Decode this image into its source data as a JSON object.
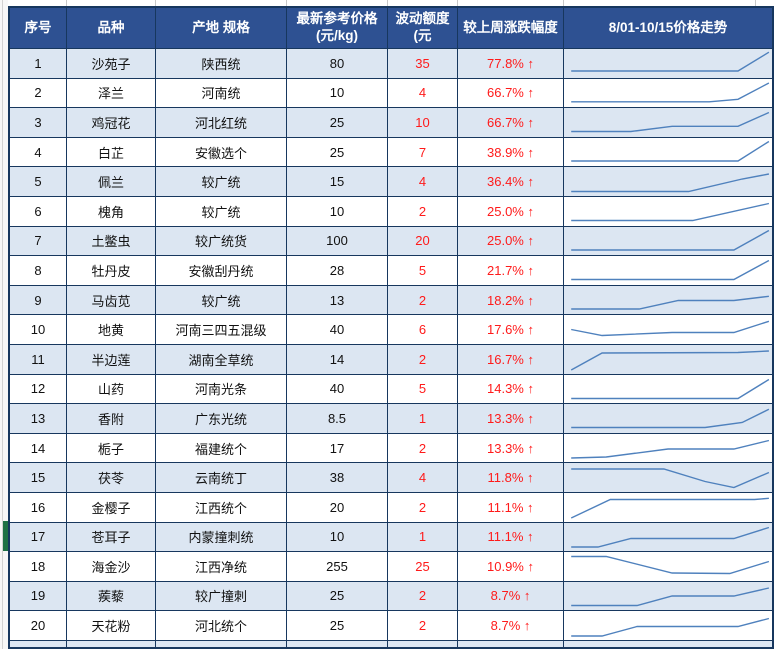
{
  "colors": {
    "header_bg": "#2e5192",
    "header_text": "#ffffff",
    "stripe_bg": "#dce6f2",
    "grid_border": "#17375e",
    "alert_red": "#ff1a1a",
    "sparkline": "#4f81bd",
    "selection_green": "#1e7145"
  },
  "table": {
    "columns": [
      {
        "title": "序号"
      },
      {
        "title": "品种"
      },
      {
        "title": "产地 规格"
      },
      {
        "title": "最新参考价格",
        "sub": "(元/kg)"
      },
      {
        "title": "波动额度",
        "sub": "(元"
      },
      {
        "title": "较上周涨跌幅度"
      },
      {
        "title": "8/01-10/15价格走势"
      }
    ],
    "rows": [
      {
        "no": "1",
        "variety": "沙苑子",
        "spec": "陕西统",
        "price": "80",
        "wave": "35",
        "change": "77.8%",
        "dir": "↑",
        "spark": [
          [
            0.03,
            0.18
          ],
          [
            0.84,
            0.18
          ],
          [
            0.99,
            0.93
          ]
        ]
      },
      {
        "no": "2",
        "variety": "泽兰",
        "spec": "河南统",
        "price": "10",
        "wave": "4",
        "change": "66.7%",
        "dir": "↑",
        "spark": [
          [
            0.03,
            0.15
          ],
          [
            0.7,
            0.15
          ],
          [
            0.84,
            0.25
          ],
          [
            0.99,
            0.9
          ]
        ]
      },
      {
        "no": "3",
        "variety": "鸡冠花",
        "spec": "河北红统",
        "price": "25",
        "wave": "10",
        "change": "66.7%",
        "dir": "↑",
        "spark": [
          [
            0.03,
            0.12
          ],
          [
            0.32,
            0.12
          ],
          [
            0.52,
            0.33
          ],
          [
            0.84,
            0.33
          ],
          [
            0.99,
            0.88
          ]
        ]
      },
      {
        "no": "4",
        "variety": "白芷",
        "spec": "安徽选个",
        "price": "25",
        "wave": "7",
        "change": "38.9%",
        "dir": "↑",
        "spark": [
          [
            0.03,
            0.14
          ],
          [
            0.84,
            0.14
          ],
          [
            0.99,
            0.92
          ]
        ]
      },
      {
        "no": "5",
        "variety": "佩兰",
        "spec": "较广统",
        "price": "15",
        "wave": "4",
        "change": "36.4%",
        "dir": "↑",
        "spark": [
          [
            0.03,
            0.12
          ],
          [
            0.6,
            0.12
          ],
          [
            0.86,
            0.62
          ],
          [
            0.99,
            0.82
          ]
        ]
      },
      {
        "no": "6",
        "variety": "槐角",
        "spec": "较广统",
        "price": "10",
        "wave": "2",
        "change": "25.0%",
        "dir": "↑",
        "spark": [
          [
            0.03,
            0.12
          ],
          [
            0.62,
            0.12
          ],
          [
            0.99,
            0.8
          ]
        ]
      },
      {
        "no": "7",
        "variety": "土鳖虫",
        "spec": "较广统货",
        "price": "100",
        "wave": "20",
        "change": "25.0%",
        "dir": "↑",
        "spark": [
          [
            0.03,
            0.14
          ],
          [
            0.82,
            0.14
          ],
          [
            0.99,
            0.92
          ]
        ]
      },
      {
        "no": "8",
        "variety": "牡丹皮",
        "spec": "安徽刮丹统",
        "price": "28",
        "wave": "5",
        "change": "21.7%",
        "dir": "↑",
        "spark": [
          [
            0.03,
            0.12
          ],
          [
            0.82,
            0.12
          ],
          [
            0.99,
            0.88
          ]
        ]
      },
      {
        "no": "9",
        "variety": "马齿苋",
        "spec": "较广统",
        "price": "13",
        "wave": "2",
        "change": "18.2%",
        "dir": "↑",
        "spark": [
          [
            0.03,
            0.14
          ],
          [
            0.36,
            0.14
          ],
          [
            0.55,
            0.48
          ],
          [
            0.82,
            0.48
          ],
          [
            0.99,
            0.65
          ]
        ]
      },
      {
        "no": "10",
        "variety": "地黄",
        "spec": "河南三四五混级",
        "price": "40",
        "wave": "6",
        "change": "17.6%",
        "dir": "↑",
        "spark": [
          [
            0.03,
            0.52
          ],
          [
            0.18,
            0.28
          ],
          [
            0.52,
            0.4
          ],
          [
            0.82,
            0.4
          ],
          [
            0.99,
            0.85
          ]
        ]
      },
      {
        "no": "11",
        "variety": "半边莲",
        "spec": "湖南全草统",
        "price": "14",
        "wave": "2",
        "change": "16.7%",
        "dir": "↑",
        "spark": [
          [
            0.03,
            0.06
          ],
          [
            0.18,
            0.74
          ],
          [
            0.84,
            0.76
          ],
          [
            0.99,
            0.82
          ]
        ]
      },
      {
        "no": "12",
        "variety": "山药",
        "spec": "河南光条",
        "price": "40",
        "wave": "5",
        "change": "14.3%",
        "dir": "↑",
        "spark": [
          [
            0.03,
            0.12
          ],
          [
            0.84,
            0.12
          ],
          [
            0.99,
            0.88
          ]
        ]
      },
      {
        "no": "13",
        "variety": "香附",
        "spec": "广东光统",
        "price": "8.5",
        "wave": "1",
        "change": "13.3%",
        "dir": "↑",
        "spark": [
          [
            0.03,
            0.12
          ],
          [
            0.68,
            0.12
          ],
          [
            0.86,
            0.32
          ],
          [
            0.99,
            0.85
          ]
        ]
      },
      {
        "no": "14",
        "variety": "栀子",
        "spec": "福建统个",
        "price": "17",
        "wave": "2",
        "change": "13.3%",
        "dir": "↑",
        "spark": [
          [
            0.03,
            0.1
          ],
          [
            0.2,
            0.14
          ],
          [
            0.5,
            0.46
          ],
          [
            0.82,
            0.46
          ],
          [
            0.99,
            0.8
          ]
        ]
      },
      {
        "no": "15",
        "variety": "茯苓",
        "spec": "云南统丁",
        "price": "38",
        "wave": "4",
        "change": "11.8%",
        "dir": "↑",
        "spark": [
          [
            0.03,
            0.86
          ],
          [
            0.48,
            0.86
          ],
          [
            0.68,
            0.36
          ],
          [
            0.82,
            0.12
          ],
          [
            0.99,
            0.72
          ]
        ]
      },
      {
        "no": "16",
        "variety": "金樱子",
        "spec": "江西统个",
        "price": "20",
        "wave": "2",
        "change": "11.1%",
        "dir": "↑",
        "spark": [
          [
            0.03,
            0.06
          ],
          [
            0.22,
            0.8
          ],
          [
            0.92,
            0.8
          ],
          [
            0.99,
            0.85
          ]
        ]
      },
      {
        "no": "17",
        "variety": "苍耳子",
        "spec": "内蒙撞刺统",
        "price": "10",
        "wave": "1",
        "change": "11.1%",
        "dir": "↑",
        "spark": [
          [
            0.03,
            0.1
          ],
          [
            0.16,
            0.1
          ],
          [
            0.32,
            0.44
          ],
          [
            0.82,
            0.44
          ],
          [
            0.99,
            0.88
          ]
        ]
      },
      {
        "no": "18",
        "variety": "海金沙",
        "spec": "江西净统",
        "price": "255",
        "wave": "25",
        "change": "10.9%",
        "dir": "↑",
        "spark": [
          [
            0.03,
            0.88
          ],
          [
            0.2,
            0.88
          ],
          [
            0.52,
            0.22
          ],
          [
            0.8,
            0.2
          ],
          [
            0.99,
            0.68
          ]
        ]
      },
      {
        "no": "19",
        "variety": "蒺藜",
        "spec": "较广撞刺",
        "price": "25",
        "wave": "2",
        "change": "8.7%",
        "dir": "↑",
        "spark": [
          [
            0.03,
            0.12
          ],
          [
            0.35,
            0.12
          ],
          [
            0.52,
            0.5
          ],
          [
            0.82,
            0.5
          ],
          [
            0.99,
            0.82
          ]
        ]
      },
      {
        "no": "20",
        "variety": "天花粉",
        "spec": "河北统个",
        "price": "25",
        "wave": "2",
        "change": "8.7%",
        "dir": "↑",
        "spark": [
          [
            0.03,
            0.1
          ],
          [
            0.18,
            0.1
          ],
          [
            0.35,
            0.48
          ],
          [
            0.84,
            0.48
          ],
          [
            0.99,
            0.8
          ]
        ]
      }
    ]
  },
  "selection": {
    "selected_row_no": "17"
  }
}
